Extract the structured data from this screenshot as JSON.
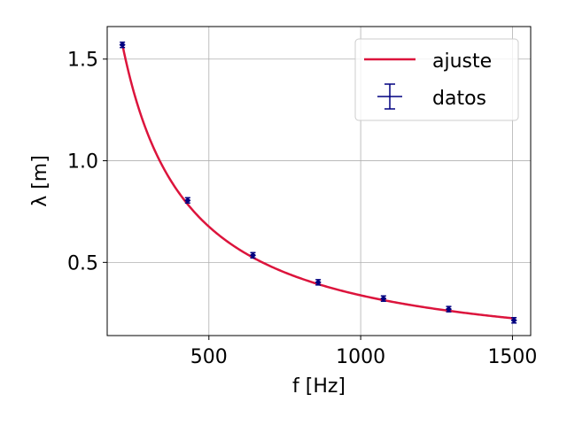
{
  "chart_data": {
    "type": "scatter",
    "xlabel": "f [Hz]",
    "ylabel": "λ [m]",
    "xlim": [
      165,
      1560
    ],
    "ylim": [
      0.14,
      1.66
    ],
    "xticks": [
      500,
      1000,
      1500
    ],
    "yticks": [
      0.5,
      1.0,
      1.5
    ],
    "xtick_labels": [
      "500",
      "1000",
      "1500"
    ],
    "ytick_labels": [
      "0.5",
      "1.0",
      "1.5"
    ],
    "grid": true,
    "legend_position": "top-right",
    "series": [
      {
        "name": "ajuste",
        "kind": "line",
        "model": "λ = a / f",
        "a": 338,
        "x_range": [
          215,
          1500
        ],
        "color": "#dc143c"
      },
      {
        "name": "datos",
        "kind": "errorbar",
        "x": [
          215,
          430,
          645,
          860,
          1075,
          1290,
          1505
        ],
        "y": [
          1.57,
          0.805,
          0.535,
          0.402,
          0.322,
          0.27,
          0.215
        ],
        "yerr": [
          0.012,
          0.012,
          0.008,
          0.006,
          0.006,
          0.006,
          0.006
        ],
        "xerr": [
          3,
          3,
          3,
          3,
          3,
          3,
          3
        ],
        "color": "#000080"
      }
    ]
  }
}
